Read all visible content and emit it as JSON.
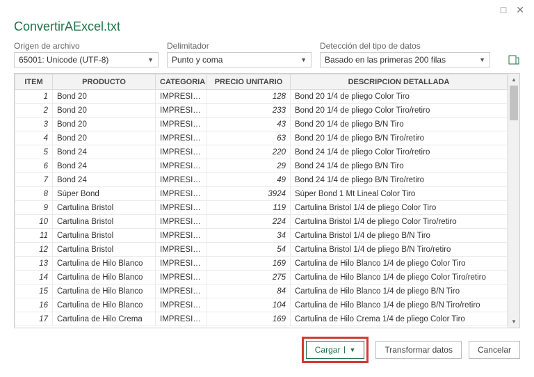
{
  "window": {
    "title": "ConvertirAExcel.txt"
  },
  "controls": {
    "origin": {
      "label": "Origen de archivo",
      "value": "65001: Unicode (UTF-8)"
    },
    "delimiter": {
      "label": "Delimitador",
      "value": "Punto y coma"
    },
    "detection": {
      "label": "Detección del tipo de datos",
      "value": "Basado en las primeras 200 filas"
    }
  },
  "table": {
    "columns": [
      "ITEM",
      "PRODUCTO",
      "CATEGORIA",
      "PRECIO UNITARIO",
      "DESCRIPCION DETALLADA"
    ],
    "rows": [
      {
        "item": "1",
        "producto": "Bond 20",
        "categoria": "IMPRESIÓN",
        "precio": "128",
        "desc": "Bond 20 1/4 de pliego Color Tiro"
      },
      {
        "item": "2",
        "producto": "Bond 20",
        "categoria": "IMPRESIÓN",
        "precio": "233",
        "desc": "Bond 20 1/4 de pliego Color Tiro/retiro"
      },
      {
        "item": "3",
        "producto": "Bond 20",
        "categoria": "IMPRESIÓN",
        "precio": "43",
        "desc": "Bond 20 1/4 de pliego B/N Tiro"
      },
      {
        "item": "4",
        "producto": "Bond 20",
        "categoria": "IMPRESIÓN",
        "precio": "63",
        "desc": "Bond 20 1/4 de pliego B/N Tiro/retiro"
      },
      {
        "item": "5",
        "producto": "Bond 24",
        "categoria": "IMPRESIÓN",
        "precio": "220",
        "desc": "Bond 24 1/4 de pliego Color Tiro/retiro"
      },
      {
        "item": "6",
        "producto": "Bond 24",
        "categoria": "IMPRESIÓN",
        "precio": "29",
        "desc": "Bond 24 1/4 de pliego B/N Tiro"
      },
      {
        "item": "7",
        "producto": "Bond 24",
        "categoria": "IMPRESIÓN",
        "precio": "49",
        "desc": "Bond 24 1/4 de pliego B/N Tiro/retiro"
      },
      {
        "item": "8",
        "producto": "Súper Bond",
        "categoria": "IMPRESIÓN",
        "precio": "3924",
        "desc": "Súper Bond 1 Mt Lineal Color Tiro"
      },
      {
        "item": "9",
        "producto": "Cartulina Bristol",
        "categoria": "IMPRESIÓN",
        "precio": "119",
        "desc": "Cartulina Bristol 1/4 de pliego Color Tiro"
      },
      {
        "item": "10",
        "producto": "Cartulina Bristol",
        "categoria": "IMPRESIÓN",
        "precio": "224",
        "desc": "Cartulina Bristol 1/4 de pliego Color Tiro/retiro"
      },
      {
        "item": "11",
        "producto": "Cartulina Bristol",
        "categoria": "IMPRESIÓN",
        "precio": "34",
        "desc": "Cartulina Bristol 1/4 de pliego B/N Tiro"
      },
      {
        "item": "12",
        "producto": "Cartulina Bristol",
        "categoria": "IMPRESIÓN",
        "precio": "54",
        "desc": "Cartulina Bristol 1/4 de pliego B/N Tiro/retiro"
      },
      {
        "item": "13",
        "producto": "Cartulina de Hilo Blanco",
        "categoria": "IMPRESIÓN",
        "precio": "169",
        "desc": "Cartulina de Hilo Blanco 1/4 de pliego Color Tiro"
      },
      {
        "item": "14",
        "producto": "Cartulina de Hilo Blanco",
        "categoria": "IMPRESIÓN",
        "precio": "275",
        "desc": "Cartulina de Hilo Blanco 1/4 de pliego Color Tiro/retiro"
      },
      {
        "item": "15",
        "producto": "Cartulina de Hilo Blanco",
        "categoria": "IMPRESIÓN",
        "precio": "84",
        "desc": "Cartulina de Hilo Blanco 1/4 de pliego B/N Tiro"
      },
      {
        "item": "16",
        "producto": "Cartulina de Hilo Blanco",
        "categoria": "IMPRESIÓN",
        "precio": "104",
        "desc": "Cartulina de Hilo Blanco 1/4 de pliego B/N Tiro/retiro"
      },
      {
        "item": "17",
        "producto": "Cartulina de Hilo Crema",
        "categoria": "IMPRESIÓN",
        "precio": "169",
        "desc": "Cartulina de Hilo Crema 1/4 de pliego Color Tiro"
      }
    ]
  },
  "footer": {
    "load": "Cargar",
    "transform": "Transformar datos",
    "cancel": "Cancelar"
  }
}
